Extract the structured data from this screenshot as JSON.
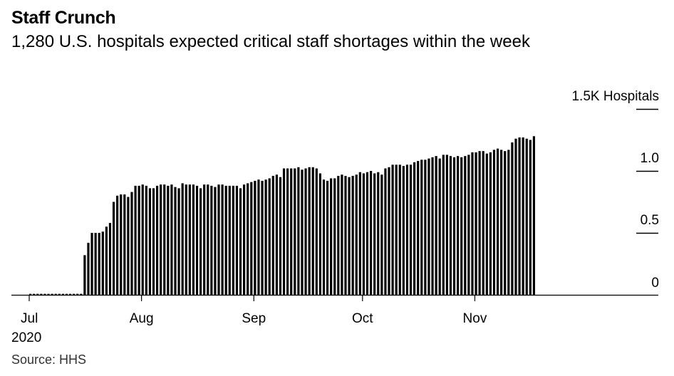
{
  "title": "Staff Crunch",
  "subtitle": "1,280 U.S. hospitals expected critical staff shortages within the week",
  "source": "Source: HHS",
  "chart_data": {
    "type": "bar",
    "ylim": [
      0,
      1.5
    ],
    "y_ticks": [
      {
        "value": 1.5,
        "label": "1.5K Hospitals"
      },
      {
        "value": 1.0,
        "label": "1.0"
      },
      {
        "value": 0.5,
        "label": "0.5"
      },
      {
        "value": 0,
        "label": "0"
      }
    ],
    "x_ticks": [
      {
        "label": "Jul",
        "sublabel": "2020",
        "index": 0
      },
      {
        "label": "Aug",
        "index": 31
      },
      {
        "label": "Sep",
        "index": 62
      },
      {
        "label": "Oct",
        "index": 92
      },
      {
        "label": "Nov",
        "index": 123
      }
    ],
    "values": [
      0,
      0,
      0,
      0,
      0,
      0,
      0,
      0,
      0,
      0,
      0,
      0,
      0,
      0,
      0,
      0.32,
      0.42,
      0.5,
      0.5,
      0.5,
      0.51,
      0.55,
      0.58,
      0.75,
      0.8,
      0.81,
      0.81,
      0.79,
      0.83,
      0.88,
      0.88,
      0.89,
      0.88,
      0.86,
      0.86,
      0.88,
      0.89,
      0.89,
      0.88,
      0.89,
      0.87,
      0.86,
      0.9,
      0.89,
      0.89,
      0.89,
      0.88,
      0.86,
      0.89,
      0.89,
      0.88,
      0.87,
      0.89,
      0.89,
      0.88,
      0.88,
      0.88,
      0.88,
      0.86,
      0.89,
      0.9,
      0.91,
      0.92,
      0.93,
      0.92,
      0.93,
      0.94,
      0.96,
      0.97,
      0.95,
      1.02,
      1.02,
      1.02,
      1.02,
      1.03,
      1.01,
      1.02,
      1.03,
      1.03,
      1.02,
      0.98,
      0.93,
      0.92,
      0.94,
      0.94,
      0.96,
      0.97,
      0.96,
      0.95,
      0.96,
      0.97,
      0.99,
      0.98,
      0.99,
      1.0,
      0.98,
      0.99,
      0.97,
      1.02,
      1.03,
      1.05,
      1.05,
      1.05,
      1.04,
      1.05,
      1.05,
      1.07,
      1.08,
      1.09,
      1.09,
      1.1,
      1.11,
      1.12,
      1.1,
      1.13,
      1.13,
      1.12,
      1.11,
      1.12,
      1.11,
      1.12,
      1.13,
      1.15,
      1.15,
      1.16,
      1.16,
      1.14,
      1.15,
      1.17,
      1.18,
      1.17,
      1.16,
      1.17,
      1.23,
      1.26,
      1.27,
      1.27,
      1.26,
      1.25,
      1.28
    ]
  }
}
